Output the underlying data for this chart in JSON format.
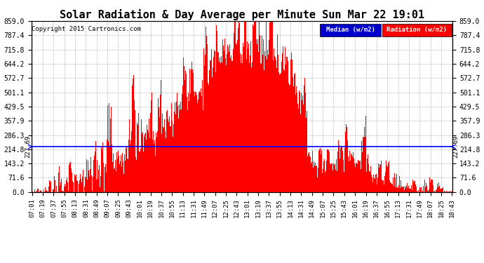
{
  "title": "Solar Radiation & Day Average per Minute Sun Mar 22 19:01",
  "copyright": "Copyright 2015 Cartronics.com",
  "median_value": 227.69,
  "ymin": 0.0,
  "ymax": 859.0,
  "yticks": [
    0.0,
    71.6,
    143.2,
    214.8,
    286.3,
    357.9,
    429.5,
    501.1,
    572.7,
    644.2,
    715.8,
    787.4,
    859.0
  ],
  "ytick_labels": [
    "0.0",
    "71.6",
    "143.2",
    "214.8",
    "286.3",
    "357.9",
    "429.5",
    "501.1",
    "572.7",
    "644.2",
    "715.8",
    "787.4",
    "859.0"
  ],
  "fill_color": "red",
  "median_color": "blue",
  "background_color": "white",
  "grid_color": "#aaaaaa",
  "title_fontsize": 11,
  "legend_median_color": "#0000cc",
  "legend_radiation_color": "red",
  "xtick_labels": [
    "07:01",
    "07:19",
    "07:37",
    "07:55",
    "08:13",
    "08:31",
    "08:49",
    "09:07",
    "09:25",
    "09:43",
    "10:01",
    "10:19",
    "10:37",
    "10:55",
    "11:13",
    "11:31",
    "11:49",
    "12:07",
    "12:25",
    "12:43",
    "13:01",
    "13:19",
    "13:37",
    "13:55",
    "14:13",
    "14:31",
    "14:49",
    "15:07",
    "15:25",
    "15:43",
    "16:01",
    "16:19",
    "16:37",
    "16:55",
    "17:13",
    "17:31",
    "17:49",
    "18:07",
    "18:25",
    "18:43"
  ],
  "figwidth": 6.9,
  "figheight": 3.75,
  "dpi": 100
}
